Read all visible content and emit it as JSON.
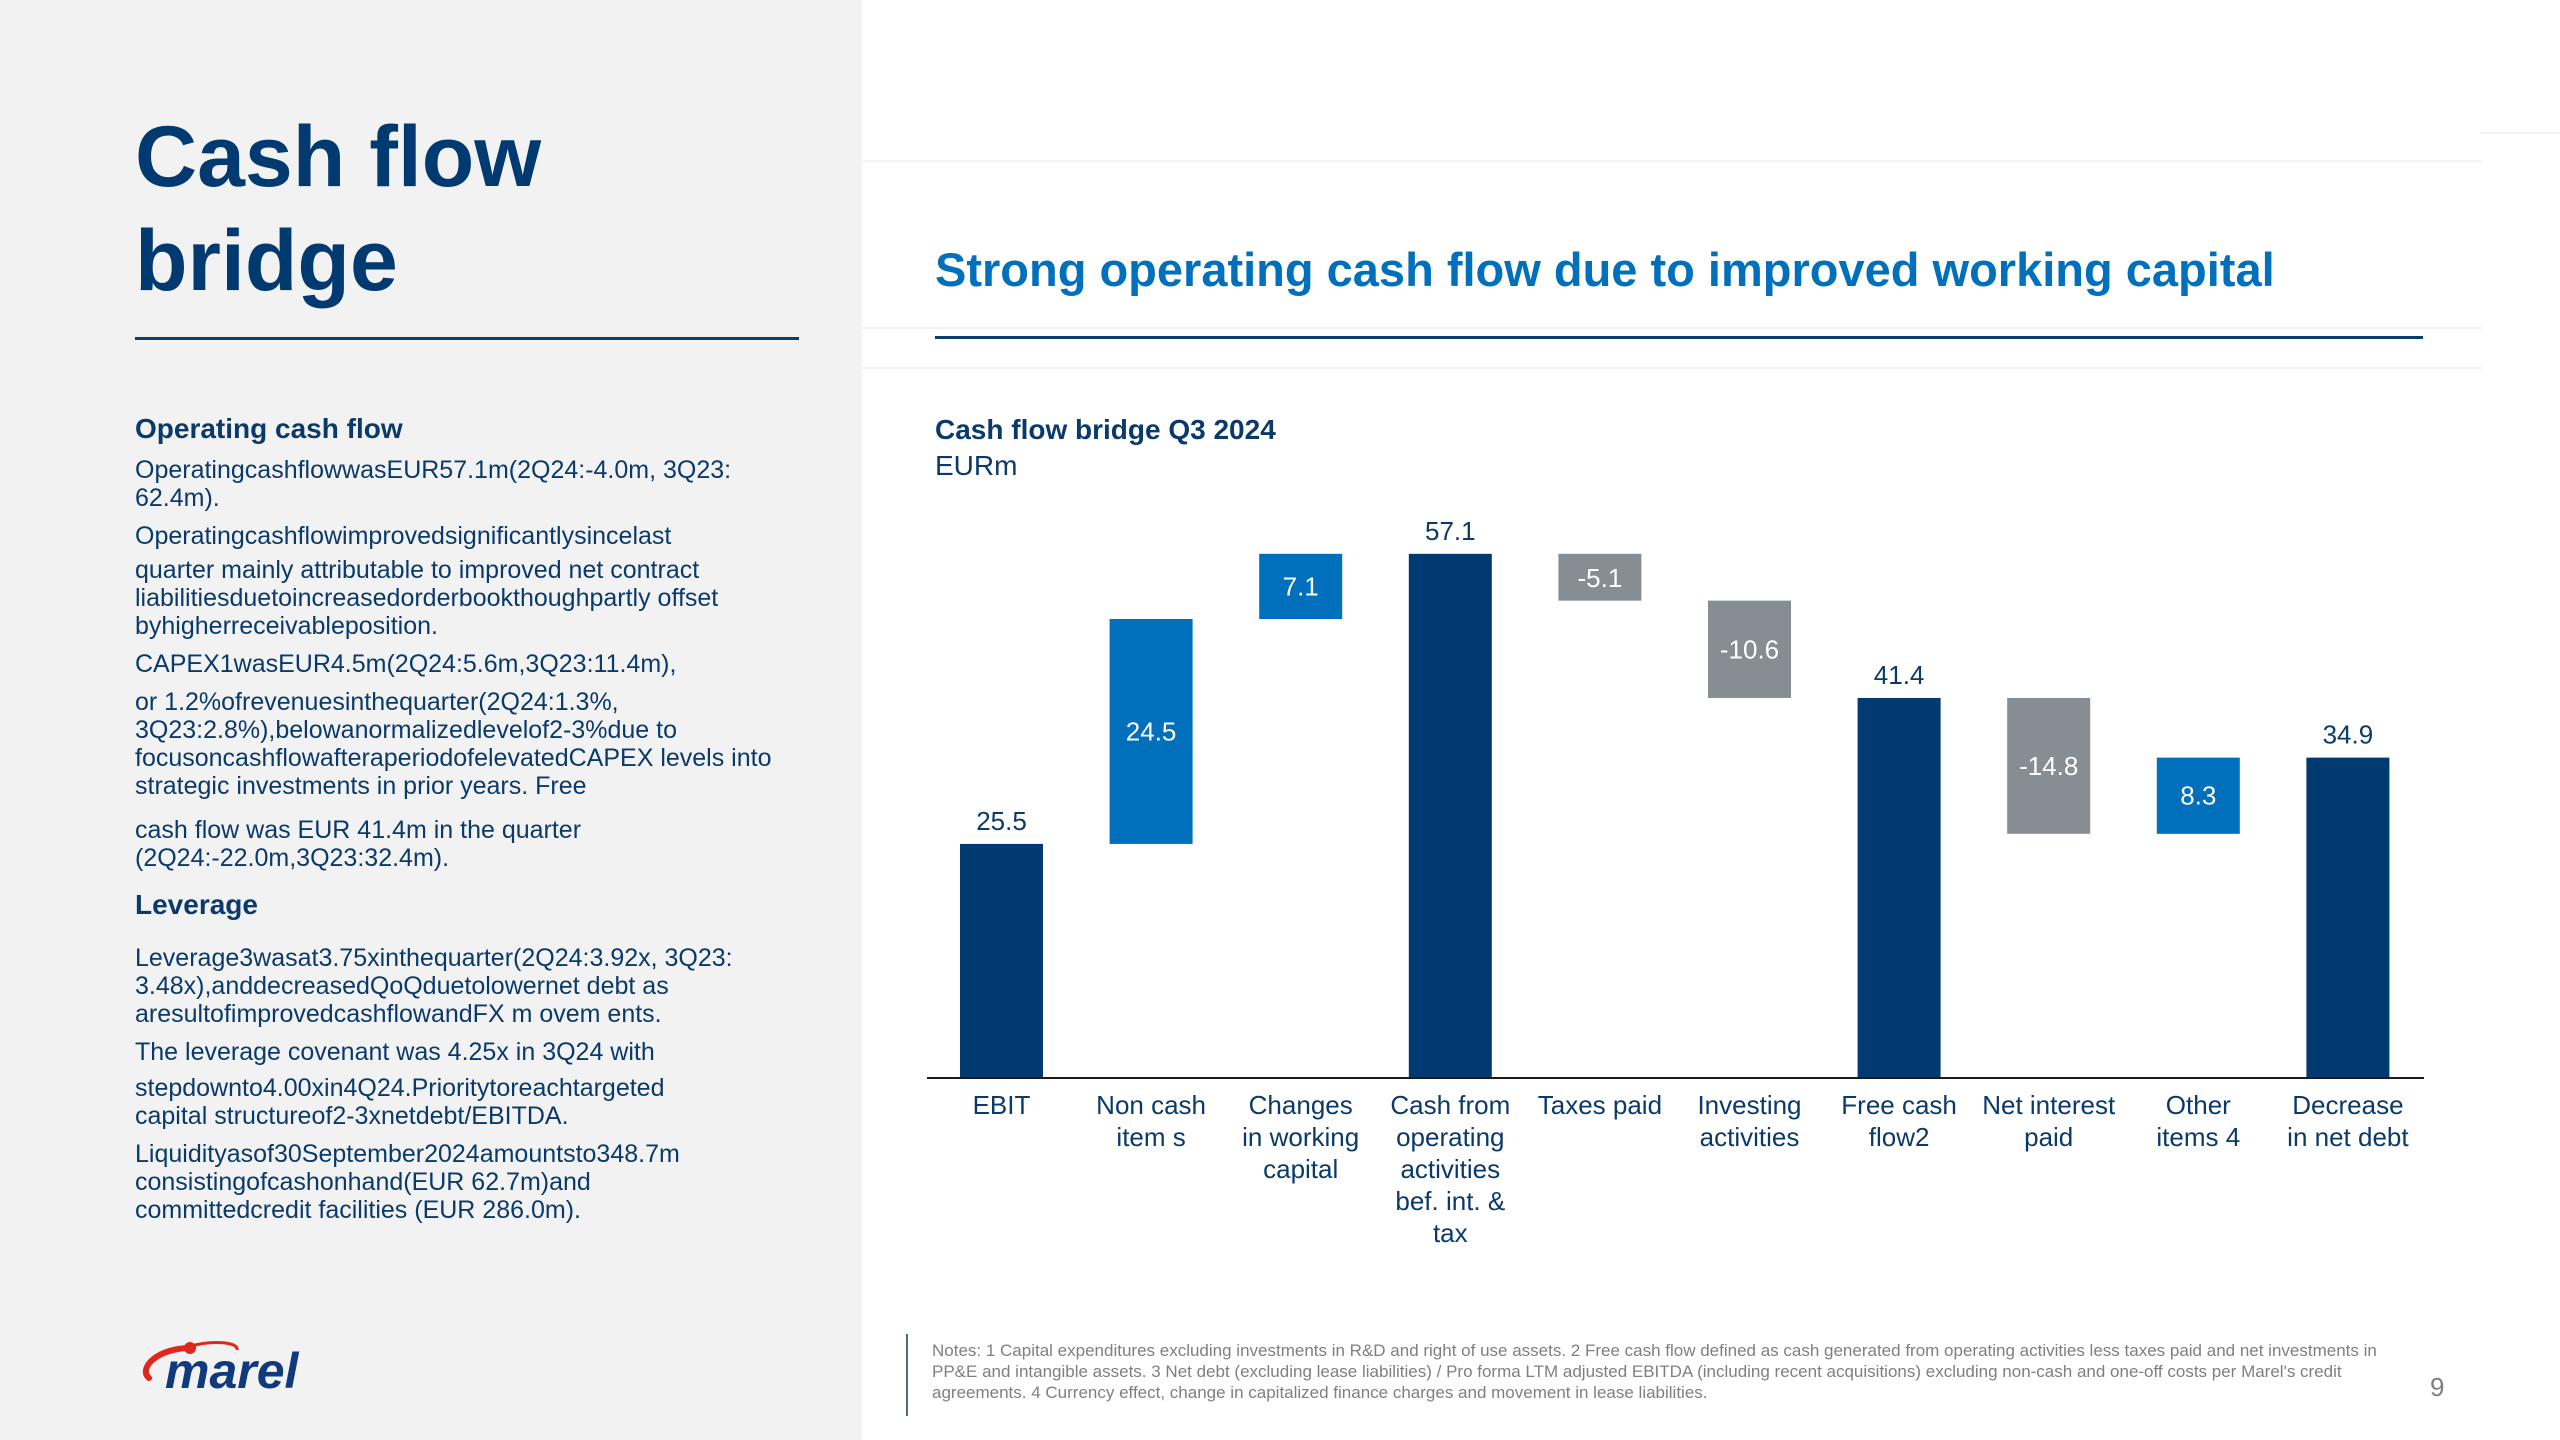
{
  "page": {
    "title_line1": "Cash flow",
    "title_line2": "bridge",
    "headline": "Strong operating cash flow due to improved working capital",
    "page_number": "9"
  },
  "left": {
    "sections": [
      {
        "heading": "Operating cash flow",
        "paragraphs": [
          "OperatingcashflowwasEUR57.1m(2Q24:-4.0m,    3Q23: 62.4m).",
          "Operatingcashflowimprovedsignificantlysincelast",
          "quarter mainly attributable to improved net contract liabilitiesduetoincreasedorderbookthoughpartly offset byhigherreceivableposition.",
          "CAPEX1wasEUR4.5m(2Q24:5.6m,3Q23:11.4m),",
          "or 1.2%ofrevenuesinthequarter(2Q24:1.3%, 3Q23:2.8%),belowanormalizedlevelof2-3%due to focusoncashflowafteraperiodofelevatedCAPEX levels  into  strategic  investments  in  prior  years.  Free",
          "cash flow was EUR 41.4m in the quarter (2Q24:-22.0m,3Q23:32.4m)."
        ]
      },
      {
        "heading": "Leverage",
        "paragraphs": [
          "Leverage3wasat3.75xinthequarter(2Q24:3.92x, 3Q23: 3.48x),anddecreasedQoQduetolowernet debt as aresultofimprovedcashflowandFX m ovem ents.",
          "The leverage covenant was 4.25x in 3Q24 with",
          "stepdownto4.00xin4Q24.Prioritytoreachtargeted capital structureof2-3xnetdebt/EBITDA.",
          "Liquidityasof30September2024amountsto348.7m consistingofcashonhand(EUR 62.7m)and committedcredit facilities (EUR 286.0m)."
        ]
      }
    ]
  },
  "logo": {
    "text": "marel",
    "icon": "marel-swoosh-icon"
  },
  "colors": {
    "total": "#003a70",
    "increase": "#0070bc",
    "decrease": "#868e94",
    "headline": "#0070bc",
    "text": "#0a3a6a",
    "logo_red": "#e1261c",
    "logo_blue": "#0f3a7d"
  },
  "chart_data": {
    "type": "bar",
    "subtype": "waterfall",
    "title": "Cash flow bridge Q3 2024",
    "unit": "EURm",
    "xlabel": "",
    "ylabel": "",
    "grid": false,
    "legend": "none",
    "ylim": [
      0,
      60
    ],
    "categories": [
      [
        "EBIT"
      ],
      [
        "Non cash",
        "item s"
      ],
      [
        "Changes",
        "in working",
        "capital"
      ],
      [
        "Cash from",
        "operating",
        "activities",
        "bef. int. &",
        "tax"
      ],
      [
        "Taxes paid"
      ],
      [
        "Investing",
        "activities"
      ],
      [
        "Free cash",
        "flow2"
      ],
      [
        "Net interest",
        "paid"
      ],
      [
        "Other",
        "items 4"
      ],
      [
        "Decrease",
        "in net debt"
      ]
    ],
    "values": [
      25.5,
      24.5,
      7.1,
      57.1,
      -5.1,
      -10.6,
      41.4,
      -14.8,
      8.3,
      34.9
    ],
    "kinds": [
      "total",
      "increase",
      "increase",
      "total",
      "decrease",
      "decrease",
      "total",
      "decrease",
      "increase",
      "total"
    ],
    "labels": [
      "25.5",
      "24.5",
      "7.1",
      "57.1",
      "-5.1",
      "-10.6",
      "41.4",
      "-14.8",
      "8.3",
      "34.9"
    ]
  },
  "notes": "Notes: 1 Capital expenditures excluding investments in R&D and right of use assets. 2 Free cash flow defined as cash generated from operating activities less taxes paid and net investments in PP&E and intangible assets. 3 Net debt (excluding lease liabilities) / Pro forma LTM adjusted EBITDA (including recent acquisitions) excluding non-cash and one-off costs per Marel's credit agreements. 4 Currency effect, change in capitalized finance charges and movement in lease liabilities."
}
